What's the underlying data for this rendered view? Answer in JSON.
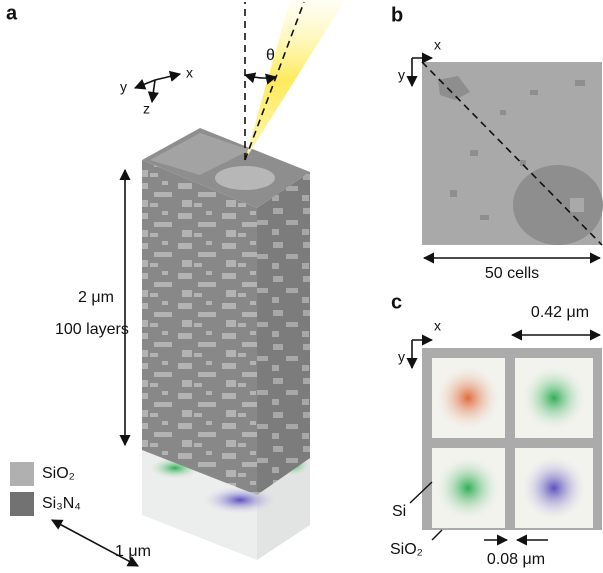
{
  "panels": {
    "a": {
      "label": "a",
      "axes": {
        "x": "x",
        "y": "y",
        "z": "z"
      },
      "angle": "θ",
      "height": "2 μm",
      "layers": "100 layers",
      "width": "1 μm",
      "legend": [
        "SiO₂",
        "Si₃N₄"
      ]
    },
    "b": {
      "label": "b",
      "axes": {
        "x": "x",
        "y": "y"
      },
      "size": "50 cells"
    },
    "c": {
      "label": "c",
      "axes": {
        "x": "x",
        "y": "y"
      },
      "period": "0.42 μm",
      "core": "Si",
      "cladding": "SiO₂",
      "gap": "0.08 μm"
    }
  }
}
